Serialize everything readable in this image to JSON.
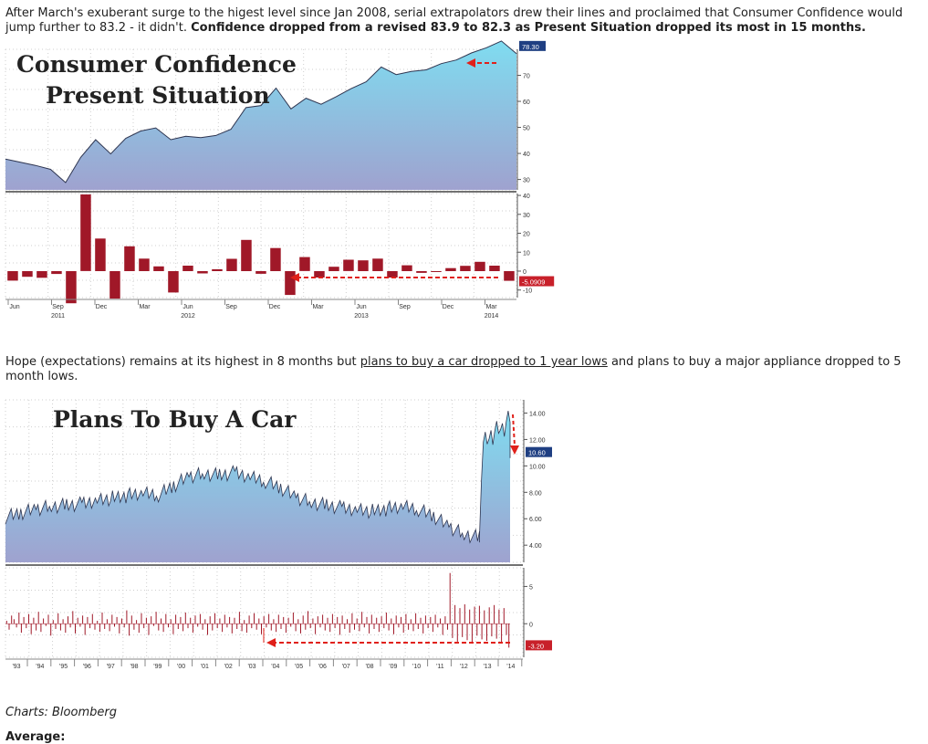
{
  "paragraph1": {
    "text_a": "After March's exuberant surge to the higest level since Jan 2008, serial extrapolators drew their lines and proclaimed that Consumer Confidence would jump further to 83.2 - it didn't. ",
    "text_bold": "Confidence dropped from a revised 83.9 to 82.3 as Present Situation dropped its most in 15 months."
  },
  "paragraph2": {
    "text_a": "Hope (expectations) remains at its highest in 8 months but ",
    "link": "plans to buy a car dropped to 1 year lows",
    "text_b": " and plans to buy a major appliance dropped to 5 month lows."
  },
  "source": "Charts: Bloomberg",
  "cutoff_heading": "Average:",
  "colors": {
    "area_top": "#7fdcf0",
    "area_bottom": "#9fa2cf",
    "bar": "#a01828",
    "arrow": "#e0201a",
    "last_label_bg": "#1f3f82",
    "neg_label_bg": "#c8202a"
  },
  "chart_data": [
    {
      "type": "area",
      "title_line1": "Consumer Confidence",
      "title_line2": "Present Situation",
      "y_ticks": [
        "70",
        "60",
        "50",
        "40",
        "30"
      ],
      "ylim": [
        26,
        80
      ],
      "last_value_label": "78.30",
      "x": [
        0,
        1,
        2,
        3,
        4,
        5,
        6,
        7,
        8,
        9,
        10,
        11,
        12,
        13,
        14,
        15,
        16,
        17,
        18,
        19,
        20,
        21,
        22,
        23,
        24,
        25,
        26,
        27,
        28,
        29,
        30,
        31,
        32,
        33,
        34
      ],
      "values": [
        37.8,
        36.6,
        35.4,
        33.9,
        28.8,
        38.5,
        45.3,
        39.8,
        45.8,
        48.6,
        49.8,
        45.3,
        46.6,
        46.1,
        46.9,
        49.3,
        57.6,
        58.4,
        65.1,
        57.1,
        61.2,
        58.9,
        61.8,
        64.9,
        67.5,
        73.2,
        70.3,
        71.5,
        72.1,
        74.5,
        75.9,
        78.6,
        80.6,
        83.2,
        78.3
      ]
    },
    {
      "type": "bar",
      "y_ticks": [
        "40",
        "30",
        "20",
        "10",
        "0",
        "-10"
      ],
      "ylim": [
        -14,
        41
      ],
      "last_value_label": "-5.0909",
      "x_tick_labels": [
        {
          "label": "Jun",
          "year": ""
        },
        {
          "label": "Sep",
          "year": "2011"
        },
        {
          "label": "Dec",
          "year": ""
        },
        {
          "label": "Mar",
          "year": ""
        },
        {
          "label": "Jun",
          "year": "2012"
        },
        {
          "label": "Sep",
          "year": ""
        },
        {
          "label": "Dec",
          "year": ""
        },
        {
          "label": "Mar",
          "year": ""
        },
        {
          "label": "Jun",
          "year": "2013"
        },
        {
          "label": "Sep",
          "year": ""
        },
        {
          "label": "Dec",
          "year": ""
        },
        {
          "label": "Mar",
          "year": "2014"
        }
      ],
      "values": [
        -5,
        -3,
        -3.5,
        -1.5,
        -17,
        40.5,
        17.2,
        -14.5,
        13.1,
        6.6,
        2.5,
        -11.3,
        2.9,
        -1.2,
        1,
        6.5,
        16.5,
        -1.4,
        12.2,
        -12.6,
        7.4,
        -3.4,
        2.3,
        6,
        5.7,
        6.6,
        -3.4,
        3.1,
        -0.9,
        -0.1,
        1.6,
        2.8,
        4.9,
        2.9,
        -5.1
      ]
    },
    {
      "type": "area",
      "title": "Plans To Buy A Car",
      "y_ticks": [
        "14.00",
        "12.00",
        "10.00",
        "8.00",
        "6.00",
        "4.00"
      ],
      "ylim": [
        2.7,
        15
      ],
      "last_value_label": "10.60",
      "x_tick_labels": [
        "'93",
        "'94",
        "'95",
        "'96",
        "'97",
        "'98",
        "'99",
        "'00",
        "'01",
        "'02",
        "'03",
        "'04",
        "'05",
        "'06",
        "'07",
        "'08",
        "'09",
        "'10",
        "'11",
        "'12",
        "'13",
        "'14"
      ],
      "segments": [
        {
          "x0": 0,
          "x1": 31,
          "values": [
            6.2,
            6.5,
            6.8,
            7,
            7.1,
            7.2,
            7.5,
            7.6,
            7.8,
            7.9,
            7.8,
            8.5,
            9.2,
            9.4,
            9.3,
            9.5,
            9.2,
            8.9,
            8.4,
            7.7,
            7.3,
            7.1,
            6.9,
            6.8,
            6.6,
            6.8,
            6.9,
            6.7,
            6.2,
            5.4,
            4.8,
            4.6
          ]
        },
        {
          "x0": 31,
          "x1": 33,
          "values": [
            4.6,
            12.2,
            12.6,
            12.3,
            12.8,
            13.2,
            12.6,
            13.3,
            13.8
          ]
        },
        {
          "x0": 33,
          "x1": 33,
          "values": [
            10.6
          ]
        }
      ]
    },
    {
      "type": "bar",
      "y_ticks": [
        "5",
        "0"
      ],
      "ylim": [
        -4.5,
        7.5
      ],
      "last_value_label": "-3.20",
      "values": [
        0.4,
        -0.8,
        1.1,
        0.6,
        -0.5,
        1.5,
        -1.2,
        0.9,
        -0.6,
        1.3,
        -1.4,
        0.8,
        -0.9,
        1.6,
        -1.1,
        0.7,
        -0.3,
        1.2,
        -1.6,
        0.5,
        -0.7,
        1.4,
        -0.9,
        0.6,
        -1.2,
        1,
        -0.5,
        1.7,
        -1.3,
        0.8,
        -0.4,
        1.1,
        -1.5,
        0.9,
        -0.6,
        1.3,
        -0.8,
        0.4,
        -1.1,
        1.5,
        -0.7,
        0.6,
        -1,
        1.2,
        -0.4,
        0.9,
        -1.3,
        0.7,
        -0.5,
        1.8,
        -1.6,
        1.1,
        -0.8,
        0.5,
        -1.2,
        1.4,
        -0.6,
        0.8,
        -1.5,
        1,
        -0.3,
        1.6,
        -0.9,
        0.7,
        -1.1,
        1.3,
        -0.5,
        0.6,
        -1.4,
        1.2,
        -0.7,
        0.9,
        -1,
        1.5,
        -0.6,
        0.8,
        -1.2,
        1.1,
        -0.4,
        1.3,
        -0.8,
        0.6,
        -1.5,
        1,
        -0.9,
        1.4,
        -0.6,
        0.7,
        -1.1,
        1.2,
        -0.5,
        0.9,
        -1.3,
        0.8,
        -0.7,
        1.6,
        -1,
        0.5,
        -1.2,
        1.1,
        -0.6,
        1.4,
        -0.8,
        0.7,
        -1.4,
        1,
        -0.5,
        1.3,
        -0.9,
        0.6,
        -1.1,
        1.2,
        -0.7,
        0.9,
        -1.2,
        0.8,
        -0.4,
        1.5,
        -1,
        0.6,
        -1.3,
        1.1,
        -0.8,
        1.7,
        -0.6,
        0.7,
        -1.4,
        1,
        -0.5,
        1.2,
        -0.9,
        0.8,
        -1.1,
        1.3,
        -0.6,
        0.9,
        -1.5,
        1.1,
        -0.7,
        0.6,
        -1.2,
        1.4,
        -0.8,
        0.7,
        -1,
        1.6,
        -0.5,
        0.9,
        -1.3,
        1.2,
        -0.7,
        0.8,
        -1.1,
        1,
        -0.6,
        1.5,
        -0.9,
        0.7,
        -1.4,
        1.1,
        -0.5,
        0.9,
        -1.2,
        1.3,
        -0.8,
        0.6,
        -1,
        1.4,
        -0.7,
        0.8,
        -1.3,
        1.1,
        -0.6,
        0.9,
        -1.1,
        1.2,
        -0.5,
        0.7,
        -1.5,
        1,
        -0.8,
        6.8,
        -1.9,
        2.5,
        -2.4,
        2.1,
        -1.8,
        2.6,
        -2.2,
        1.9,
        -2.5,
        2.3,
        -1.6,
        2.4,
        -2.1,
        1.8,
        -2.3,
        2.2,
        -1.7,
        2.5,
        -2,
        1.9,
        -2.6,
        2.1,
        -1.5,
        -3.2
      ]
    }
  ]
}
